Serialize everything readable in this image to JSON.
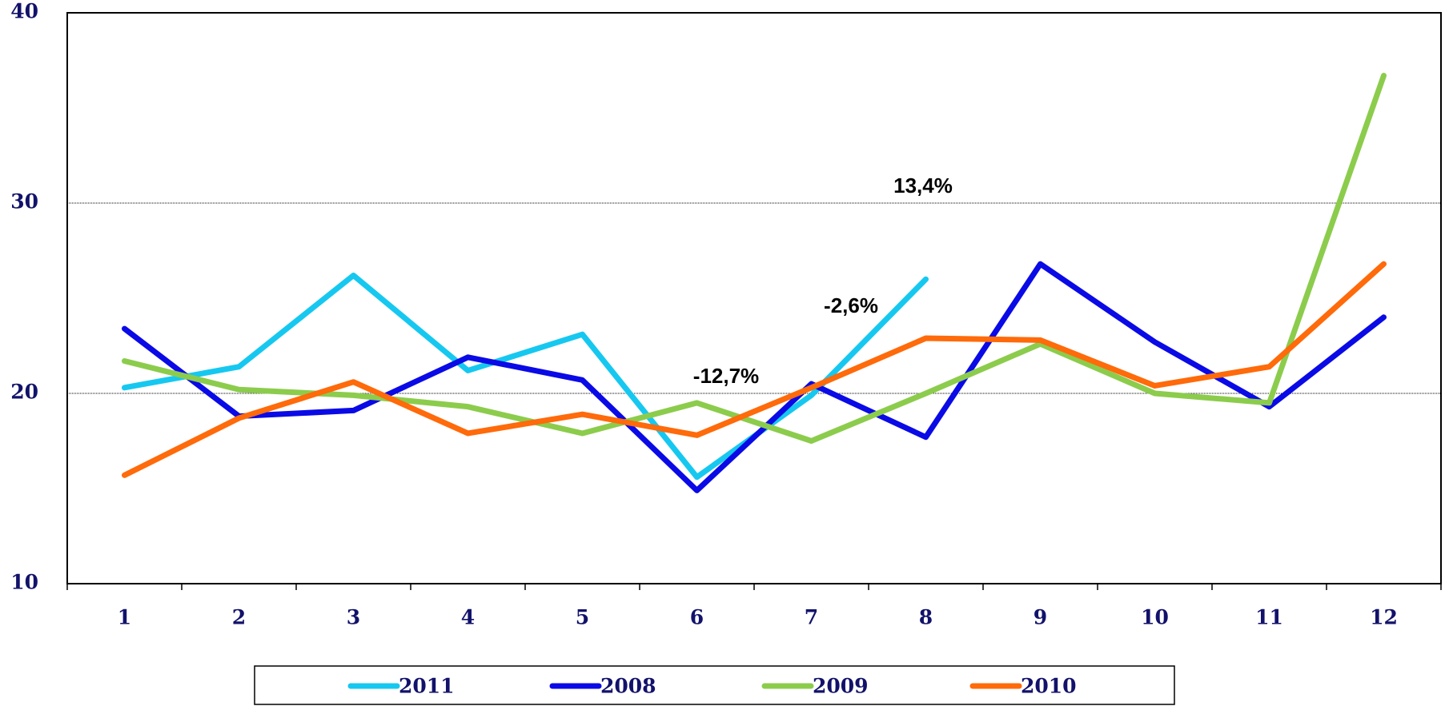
{
  "chart_data": {
    "type": "line",
    "categories": [
      "1",
      "2",
      "3",
      "4",
      "5",
      "6",
      "7",
      "8",
      "9",
      "10",
      "11",
      "12"
    ],
    "series": [
      {
        "name": "2011",
        "color": "#16c8f0",
        "values": [
          20.3,
          21.4,
          26.2,
          21.2,
          23.1,
          15.6,
          19.9,
          26.0,
          null,
          null,
          null,
          null
        ]
      },
      {
        "name": "2008",
        "color": "#0a0ae6",
        "values": [
          23.4,
          18.8,
          19.1,
          21.9,
          20.7,
          14.9,
          20.5,
          17.7,
          26.8,
          22.7,
          19.3,
          24.0
        ]
      },
      {
        "name": "2009",
        "color": "#8ccc4c",
        "values": [
          21.7,
          20.2,
          19.9,
          19.3,
          17.9,
          19.5,
          17.5,
          20.0,
          22.6,
          20.0,
          19.5,
          36.7
        ]
      },
      {
        "name": "2010",
        "color": "#ff6a0a",
        "values": [
          15.7,
          18.7,
          20.6,
          17.9,
          18.9,
          17.8,
          20.3,
          22.9,
          22.8,
          20.4,
          21.4,
          26.8
        ]
      }
    ],
    "annotations": [
      "13,4%",
      "-2,6%",
      "-12,7%"
    ],
    "ylim": [
      10,
      40
    ],
    "yticks": [
      10,
      20,
      30,
      40
    ],
    "grid": true,
    "legend": "bottom"
  }
}
